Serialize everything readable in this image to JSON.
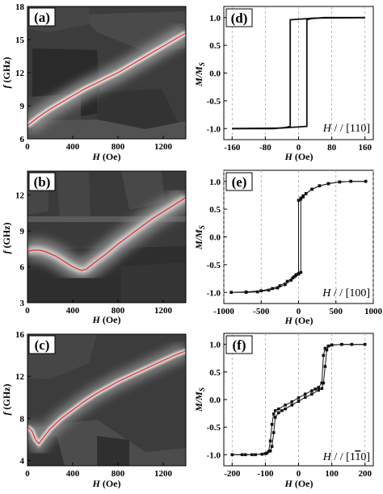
{
  "chart_data": [
    {
      "panel": "(a)",
      "type": "heatmap",
      "xlabel_var": "H",
      "xlabel_unit": " (Oe)",
      "ylabel_var": "f",
      "ylabel_unit": " (GHz)",
      "xlim": [
        0,
        1400
      ],
      "ylim": [
        6,
        18
      ],
      "xticks": [
        0,
        400,
        800,
        1200
      ],
      "yticks": [
        6,
        9,
        12,
        15,
        18
      ],
      "fit_curve": {
        "color": "#e53935",
        "x": [
          0,
          100,
          200,
          300,
          400,
          500,
          600,
          700,
          800,
          900,
          1000,
          1100,
          1200,
          1300,
          1400
        ],
        "y": [
          7.2,
          8.0,
          8.7,
          9.3,
          9.9,
          10.5,
          11.0,
          11.5,
          12.0,
          12.6,
          13.2,
          13.8,
          14.4,
          15.0,
          15.6
        ]
      }
    },
    {
      "panel": "(b)",
      "type": "heatmap",
      "xlabel_var": "H",
      "xlabel_unit": " (Oe)",
      "ylabel_var": "f",
      "ylabel_unit": " (GHz)",
      "xlim": [
        0,
        1400
      ],
      "ylim": [
        3,
        14
      ],
      "xticks": [
        0,
        400,
        800,
        1200
      ],
      "yticks": [
        3,
        6,
        9,
        12
      ],
      "fit_curve": {
        "color": "#e53935",
        "x": [
          0,
          50,
          100,
          150,
          200,
          250,
          300,
          350,
          400,
          450,
          480,
          520,
          600,
          700,
          800,
          900,
          1000,
          1100,
          1200,
          1300,
          1400
        ],
        "y": [
          7.3,
          7.4,
          7.4,
          7.3,
          7.1,
          6.9,
          6.6,
          6.3,
          6.0,
          5.8,
          5.7,
          5.8,
          6.4,
          7.1,
          7.9,
          8.6,
          9.3,
          10.0,
          10.6,
          11.2,
          11.8
        ]
      }
    },
    {
      "panel": "(c)",
      "type": "heatmap",
      "xlabel_var": "H",
      "xlabel_unit": " (Oe)",
      "ylabel_var": "f",
      "ylabel_unit": " (GHz)",
      "xlim": [
        0,
        1400
      ],
      "ylim": [
        3.5,
        16
      ],
      "xticks": [
        0,
        400,
        800,
        1200
      ],
      "yticks": [
        4,
        8,
        12,
        16
      ],
      "fit_curve": {
        "color": "#e53935",
        "x": [
          0,
          40,
          70,
          100,
          150,
          200,
          300,
          400,
          500,
          600,
          700,
          800,
          900,
          1000,
          1100,
          1200,
          1300,
          1400
        ],
        "y": [
          7.2,
          6.8,
          6.0,
          5.6,
          6.3,
          7.0,
          8.0,
          8.8,
          9.6,
          10.3,
          10.9,
          11.5,
          12.0,
          12.5,
          13.0,
          13.5,
          14.0,
          14.4
        ]
      }
    },
    {
      "panel": "(d)",
      "type": "line",
      "xlabel_var": "H",
      "xlabel_unit": " (Oe)",
      "ylabel_main": "M/M",
      "ylabel_sub": "S",
      "xlim": [
        -180,
        180
      ],
      "ylim": [
        -1.2,
        1.2
      ],
      "xticks": [
        -160,
        -80,
        0,
        80,
        160
      ],
      "yticks": [
        -1.0,
        -0.5,
        0.0,
        0.5,
        1.0
      ],
      "xtick_labels": [
        "-160",
        "-80",
        "0",
        "80",
        "160"
      ],
      "ytick_labels": [
        "-1.0",
        "-0.5",
        "0.0",
        "0.5",
        "1.0"
      ],
      "field_label": "H",
      "field_dir": "[110]",
      "markers": false,
      "branches": [
        {
          "x": [
            -160,
            -60,
            -30,
            -20,
            -20,
            20,
            40,
            160
          ],
          "y": [
            -1.0,
            -1.0,
            -0.98,
            -0.96,
            0.96,
            0.98,
            0.99,
            1.0
          ]
        },
        {
          "x": [
            160,
            60,
            30,
            20,
            20,
            -20,
            -40,
            -160
          ],
          "y": [
            1.0,
            1.0,
            0.98,
            0.96,
            -0.96,
            -0.98,
            -0.99,
            -1.0
          ]
        }
      ]
    },
    {
      "panel": "(e)",
      "type": "line",
      "xlabel_var": "H",
      "xlabel_unit": " (Oe)",
      "ylabel_main": "M/M",
      "ylabel_sub": "S",
      "xlim": [
        -1000,
        1000
      ],
      "ylim": [
        -1.2,
        1.2
      ],
      "xticks": [
        -1000,
        -500,
        0,
        500,
        1000
      ],
      "yticks": [
        -1.0,
        -0.5,
        0.0,
        0.5,
        1.0
      ],
      "xtick_labels": [
        "-1000",
        "-500",
        "0",
        "500",
        "1000"
      ],
      "ytick_labels": [
        "-1.0",
        "-0.5",
        "0.0",
        "0.5",
        "1.0"
      ],
      "field_label": "H",
      "field_dir": "[100]",
      "markers": true,
      "branches": [
        {
          "x": [
            -900,
            -700,
            -500,
            -350,
            -250,
            -150,
            -80,
            -40,
            0,
            30,
            30,
            60,
            100,
            180,
            280,
            400,
            550,
            700,
            900
          ],
          "y": [
            -1.0,
            -0.99,
            -0.97,
            -0.93,
            -0.88,
            -0.8,
            -0.74,
            -0.7,
            -0.67,
            -0.64,
            0.68,
            0.72,
            0.78,
            0.86,
            0.92,
            0.96,
            0.99,
            1.0,
            1.0
          ]
        },
        {
          "x": [
            900,
            700,
            550,
            400,
            280,
            180,
            100,
            60,
            30,
            0,
            0,
            -30,
            -60,
            -100,
            -180,
            -280,
            -400,
            -550,
            -700,
            -900
          ],
          "y": [
            1.0,
            1.0,
            0.99,
            0.96,
            0.92,
            0.86,
            0.78,
            0.74,
            0.7,
            0.66,
            -0.66,
            -0.68,
            -0.72,
            -0.78,
            -0.86,
            -0.92,
            -0.96,
            -0.99,
            -1.0,
            -1.0
          ]
        }
      ]
    },
    {
      "panel": "(f)",
      "type": "line",
      "xlabel_var": "H",
      "xlabel_unit": " (Oe)",
      "ylabel_main": "M/M",
      "ylabel_sub": "S",
      "xlim": [
        -225,
        225
      ],
      "ylim": [
        -1.2,
        1.2
      ],
      "xticks": [
        -200,
        -100,
        0,
        100,
        200
      ],
      "yticks": [
        -1.0,
        -0.5,
        0.0,
        0.5,
        1.0
      ],
      "xtick_labels": [
        "-200",
        "-100",
        "0",
        "100",
        "200"
      ],
      "ytick_labels": [
        "-1.0",
        "-0.5",
        "0.0",
        "0.5",
        "1.0"
      ],
      "field_label": "H",
      "field_dir": "[110]",
      "markers": true,
      "branches": [
        {
          "x": [
            -200,
            -170,
            -140,
            -110,
            -95,
            -85,
            -80,
            -75,
            -70,
            -60,
            -50,
            -40,
            -20,
            0,
            20,
            40,
            60,
            70,
            75,
            80,
            85,
            90,
            100,
            130,
            160,
            200
          ],
          "y": [
            -1.0,
            -1.0,
            -1.0,
            -0.99,
            -0.97,
            -0.93,
            -0.85,
            -0.6,
            -0.32,
            -0.24,
            -0.2,
            -0.17,
            -0.1,
            -0.03,
            0.04,
            0.1,
            0.17,
            0.2,
            0.3,
            0.6,
            0.9,
            0.97,
            0.99,
            1.0,
            1.0,
            1.0
          ]
        },
        {
          "x": [
            200,
            160,
            130,
            100,
            90,
            80,
            75,
            70,
            60,
            50,
            40,
            20,
            0,
            -20,
            -40,
            -60,
            -70,
            -75,
            -80,
            -85,
            -90,
            -100,
            -130,
            -160,
            -200
          ],
          "y": [
            1.0,
            1.0,
            1.0,
            0.99,
            0.97,
            0.93,
            0.8,
            0.3,
            0.22,
            0.19,
            0.16,
            0.1,
            0.03,
            -0.04,
            -0.1,
            -0.17,
            -0.2,
            -0.26,
            -0.45,
            -0.75,
            -0.94,
            -0.98,
            -1.0,
            -1.0,
            -1.0
          ]
        }
      ]
    }
  ]
}
